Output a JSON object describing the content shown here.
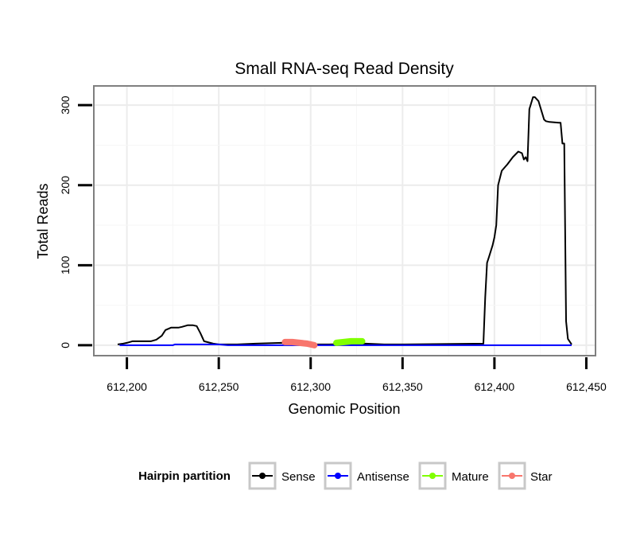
{
  "chart_data": {
    "type": "line",
    "title": "Small RNA-seq Read Density",
    "xlabel": "Genomic Position",
    "ylabel": "Total Reads",
    "xlim": [
      612182,
      612455
    ],
    "ylim": [
      -13,
      324
    ],
    "x_ticks": [
      612200,
      612250,
      612300,
      612350,
      612400,
      612450
    ],
    "x_tick_labels": [
      "612,200",
      "612,250",
      "612,300",
      "612,350",
      "612,400",
      "612,450"
    ],
    "y_ticks": [
      0,
      100,
      200,
      300
    ],
    "y_tick_labels": [
      "0",
      "100",
      "200",
      "300"
    ],
    "grid": true,
    "legend": {
      "title": "Hairpin partition",
      "placement": "bottom",
      "entries": [
        "Sense",
        "Antisense",
        "Mature",
        "Star"
      ]
    },
    "series": [
      {
        "name": "Sense",
        "color": "#000000",
        "style": "line",
        "x": [
          612195,
          612198,
          612200,
          612203,
          612213,
          612216,
          612219,
          612221,
          612224,
          612228,
          612230,
          612233,
          612236,
          612238,
          612240,
          612242,
          612247,
          612250,
          612260,
          612270,
          612284,
          612290,
          612300,
          612310,
          612330,
          612340,
          612350,
          612394,
          612395,
          612396,
          612397,
          612399,
          612400,
          612401,
          612402,
          612404,
          612407,
          612410,
          612413,
          612415,
          612416,
          612417,
          612418,
          612419,
          612421,
          612422,
          612424,
          612427,
          612428,
          612430,
          612435,
          612436,
          612437,
          612438,
          612439,
          612440,
          612442
        ],
        "values": [
          1,
          2,
          3,
          5,
          5,
          7,
          12,
          19,
          22,
          22,
          23,
          25,
          25,
          24,
          15,
          5,
          2,
          1,
          1,
          2,
          3,
          2,
          1,
          1,
          2,
          1,
          1,
          2,
          60,
          103,
          110,
          125,
          135,
          150,
          200,
          218,
          226,
          235,
          242,
          240,
          232,
          235,
          230,
          295,
          310,
          310,
          305,
          282,
          280,
          279,
          278,
          278,
          252,
          252,
          30,
          8,
          1
        ]
      },
      {
        "name": "Antisense",
        "color": "#0000ff",
        "style": "line",
        "x": [
          612196,
          612225,
          612226,
          612250,
          612255,
          612442
        ],
        "values": [
          0,
          0,
          1,
          1,
          0,
          0
        ]
      },
      {
        "name": "Mature",
        "color": "#80ff00",
        "style": "thick",
        "x": [
          612314,
          612318,
          612322,
          612326,
          612328
        ],
        "values": [
          3,
          4,
          5,
          5,
          5
        ]
      },
      {
        "name": "Star",
        "color": "#f8766d",
        "style": "thick",
        "x": [
          612286,
          612290,
          612294,
          612298,
          612302
        ],
        "values": [
          4,
          4,
          3,
          2,
          0
        ]
      }
    ]
  }
}
